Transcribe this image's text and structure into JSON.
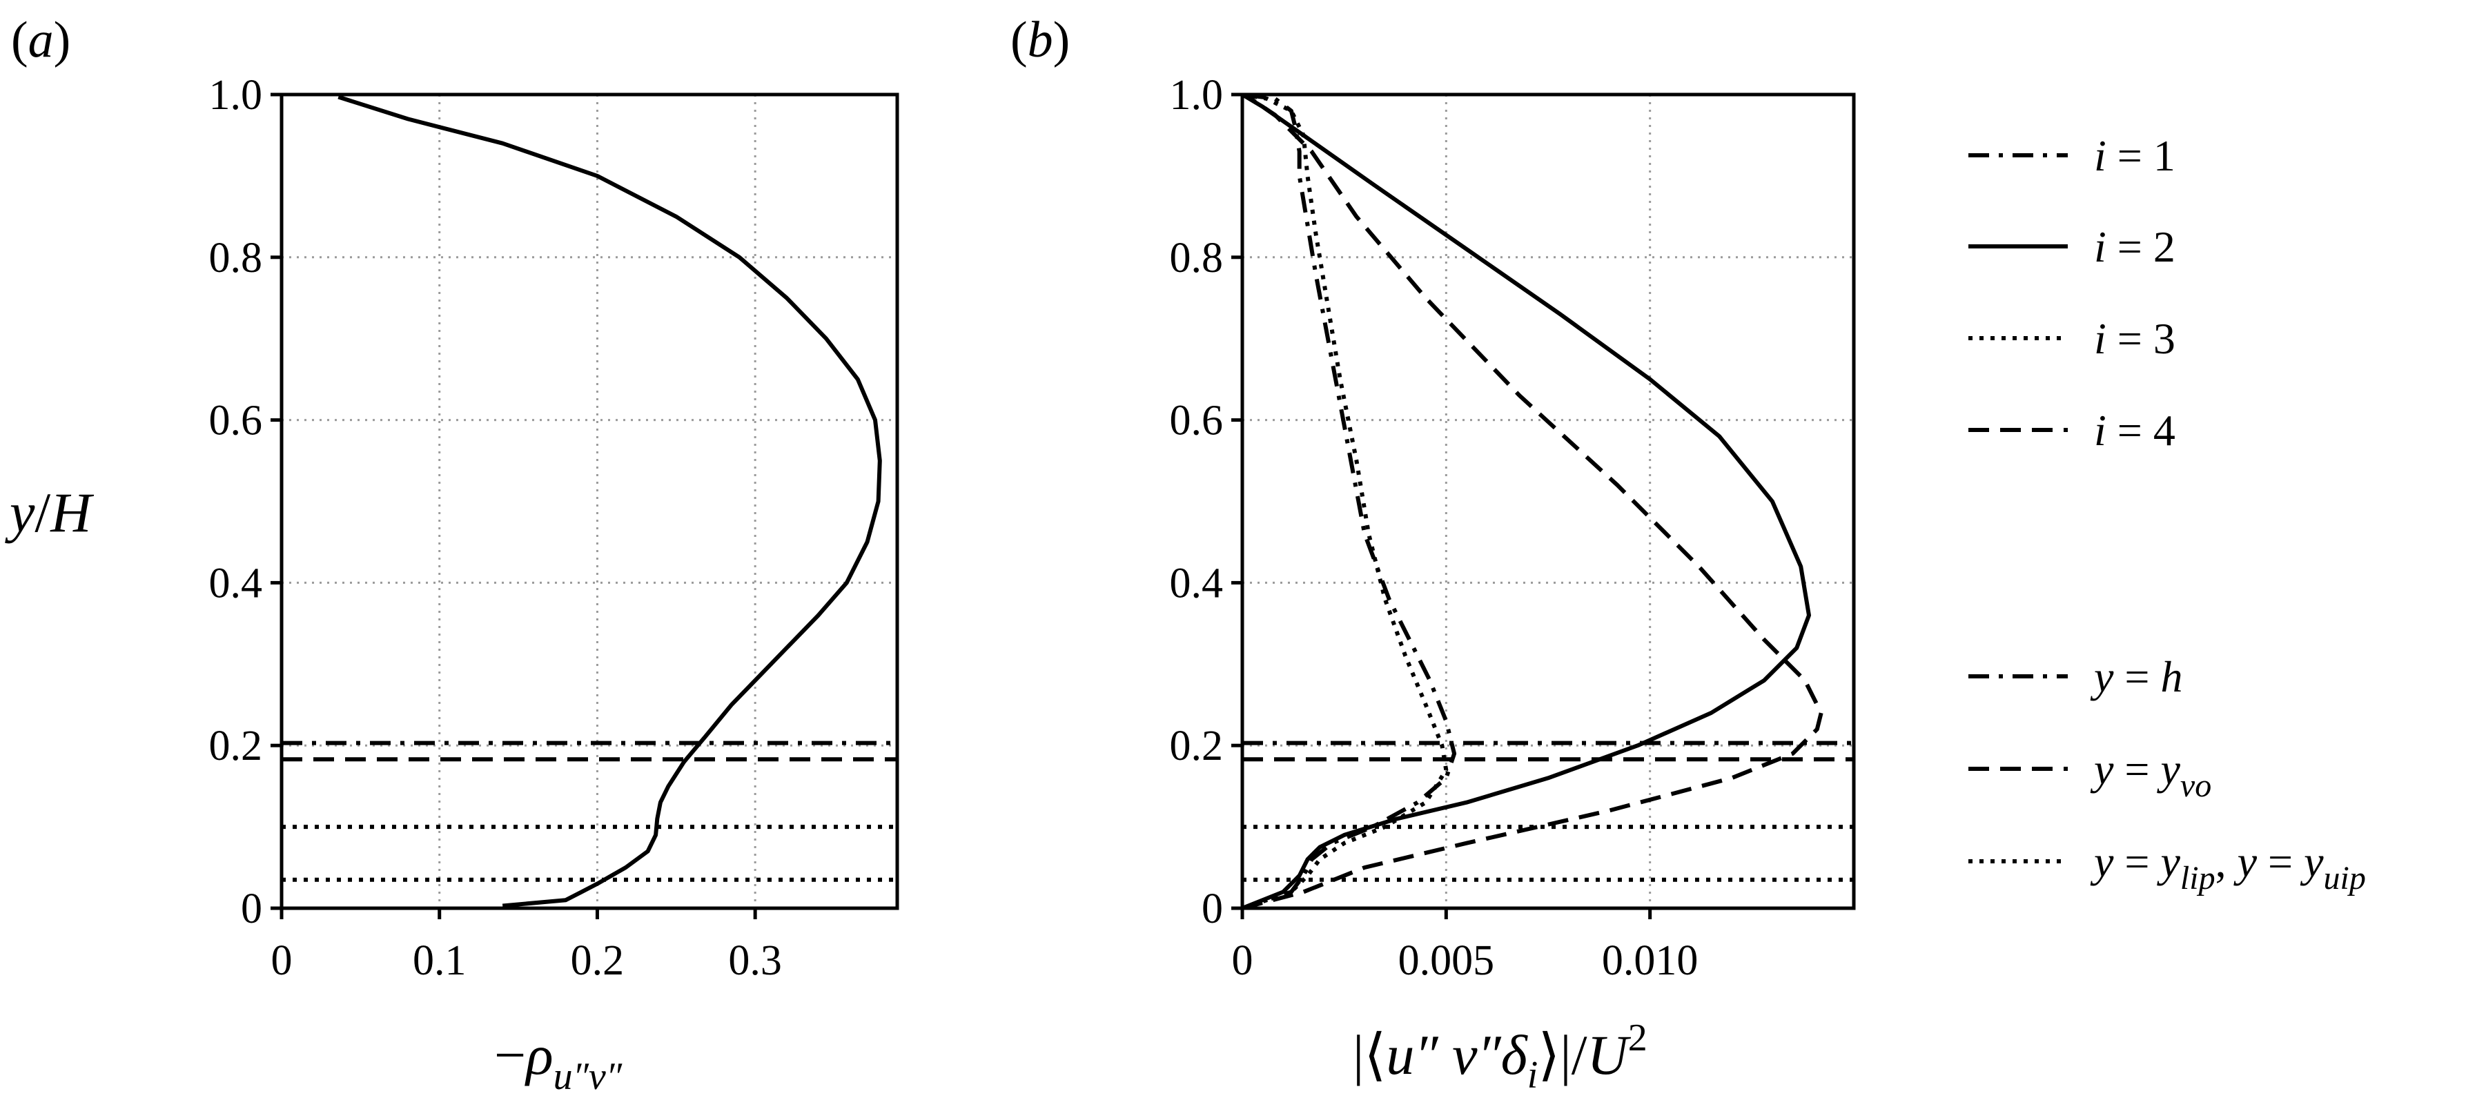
{
  "chart_data": [
    {
      "id": "a",
      "type": "line",
      "panel_label": "(a)",
      "xlabel": "−ρ_{u″v″}",
      "ylabel": "y/H",
      "xlim": [
        0,
        0.39
      ],
      "ylim": [
        0,
        1.0
      ],
      "xticks": [
        0,
        0.1,
        0.2,
        0.3
      ],
      "xtick_labels": [
        "0",
        "0.1",
        "0.2",
        "0.3"
      ],
      "yticks": [
        0,
        0.2,
        0.4,
        0.6,
        0.8,
        1.0
      ],
      "ytick_labels": [
        "0",
        "0.2",
        "0.4",
        "0.6",
        "0.8",
        "1.0"
      ],
      "grid": true,
      "series": [
        {
          "style": "solid",
          "x": [
            0.14,
            0.18,
            0.19,
            0.2,
            0.218,
            0.232,
            0.237,
            0.238,
            0.24,
            0.245,
            0.255,
            0.268,
            0.285,
            0.3,
            0.32,
            0.34,
            0.358,
            0.371,
            0.378,
            0.379,
            0.376,
            0.365,
            0.345,
            0.32,
            0.29,
            0.25,
            0.2,
            0.14,
            0.08,
            0.036
          ],
          "y": [
            0.003,
            0.01,
            0.02,
            0.03,
            0.05,
            0.07,
            0.09,
            0.11,
            0.13,
            0.15,
            0.18,
            0.21,
            0.25,
            0.28,
            0.32,
            0.36,
            0.4,
            0.45,
            0.5,
            0.55,
            0.6,
            0.65,
            0.7,
            0.75,
            0.8,
            0.85,
            0.9,
            0.94,
            0.97,
            0.997
          ]
        }
      ],
      "reference_lines": [
        {
          "y": 0.203,
          "style": "dashdot"
        },
        {
          "y": 0.183,
          "style": "dashed"
        },
        {
          "y": 0.1,
          "style": "dotted"
        },
        {
          "y": 0.035,
          "style": "dotted"
        }
      ]
    },
    {
      "id": "b",
      "type": "line",
      "panel_label": "(b)",
      "xlabel": "|⟨u″ v″δ_i⟩|/U^2",
      "xlim": [
        0,
        0.015
      ],
      "ylim": [
        0,
        1.0
      ],
      "xticks": [
        0,
        0.005,
        0.01
      ],
      "xtick_labels": [
        "0",
        "0.005",
        "0.010"
      ],
      "yticks": [
        0,
        0.2,
        0.4,
        0.6,
        0.8,
        1.0
      ],
      "ytick_labels": [
        "0",
        "0.2",
        "0.4",
        "0.6",
        "0.8",
        "1.0"
      ],
      "grid": true,
      "series": [
        {
          "name": "i = 1",
          "style": "dashdot",
          "x": [
            0,
            0.0012,
            0.0015,
            0.0017,
            0.0022,
            0.0032,
            0.0043,
            0.005,
            0.0052,
            0.005,
            0.0046,
            0.0042,
            0.0036,
            0.003,
            0.0027,
            0.0024,
            0.0021,
            0.0018,
            0.0016,
            0.0014,
            0.0014,
            0.0013,
            0.0012,
            0.0008,
            0
          ],
          "y": [
            0,
            0.02,
            0.04,
            0.06,
            0.08,
            0.1,
            0.13,
            0.16,
            0.19,
            0.23,
            0.28,
            0.32,
            0.38,
            0.46,
            0.54,
            0.62,
            0.7,
            0.78,
            0.84,
            0.9,
            0.93,
            0.96,
            0.98,
            0.995,
            1.0
          ]
        },
        {
          "name": "i = 2",
          "style": "solid",
          "x": [
            0,
            0.001,
            0.0014,
            0.0016,
            0.0019,
            0.0025,
            0.0038,
            0.0055,
            0.0075,
            0.0097,
            0.0115,
            0.0128,
            0.0136,
            0.0139,
            0.0137,
            0.013,
            0.0117,
            0.01,
            0.0078,
            0.0055,
            0.0032,
            0.0015,
            0.0005,
            0
          ],
          "y": [
            0,
            0.02,
            0.04,
            0.06,
            0.075,
            0.09,
            0.11,
            0.13,
            0.16,
            0.2,
            0.24,
            0.28,
            0.32,
            0.36,
            0.42,
            0.5,
            0.58,
            0.65,
            0.73,
            0.81,
            0.89,
            0.95,
            0.985,
            1.0
          ]
        },
        {
          "name": "i = 3",
          "style": "dotted",
          "x": [
            0,
            0.0012,
            0.0016,
            0.0019,
            0.0025,
            0.0035,
            0.0045,
            0.005,
            0.0049,
            0.0045,
            0.004,
            0.0035,
            0.0031,
            0.0028,
            0.0024,
            0.0021,
            0.0018,
            0.0016,
            0.0015,
            0.0012,
            0.0006,
            0
          ],
          "y": [
            0,
            0.02,
            0.04,
            0.06,
            0.08,
            0.1,
            0.13,
            0.17,
            0.2,
            0.25,
            0.31,
            0.38,
            0.46,
            0.55,
            0.65,
            0.74,
            0.83,
            0.9,
            0.95,
            0.98,
            0.995,
            1.0
          ]
        },
        {
          "name": "i = 4",
          "style": "dashed",
          "x": [
            0,
            0.0015,
            0.003,
            0.0055,
            0.009,
            0.012,
            0.0135,
            0.0141,
            0.0142,
            0.0138,
            0.0128,
            0.0112,
            0.0092,
            0.0068,
            0.0045,
            0.0028,
            0.0017,
            0.0008,
            0.0002,
            0
          ],
          "y": [
            0,
            0.02,
            0.05,
            0.08,
            0.12,
            0.16,
            0.19,
            0.22,
            0.24,
            0.28,
            0.33,
            0.42,
            0.52,
            0.63,
            0.75,
            0.85,
            0.93,
            0.975,
            0.995,
            1.0
          ]
        }
      ],
      "reference_lines": [
        {
          "y": 0.203,
          "style": "dashdot"
        },
        {
          "y": 0.183,
          "style": "dashed"
        },
        {
          "y": 0.1,
          "style": "dotted"
        },
        {
          "y": 0.035,
          "style": "dotted"
        }
      ]
    }
  ],
  "legend": {
    "placement": "right",
    "series_entries": [
      {
        "style": "dashdot",
        "label": "i = 1"
      },
      {
        "style": "solid",
        "label": "i = 2"
      },
      {
        "style": "dotted",
        "label": "i = 3"
      },
      {
        "style": "dashed",
        "label": "i = 4"
      }
    ],
    "line_entries": [
      {
        "style": "dashdot",
        "label": "y = h"
      },
      {
        "style": "dashed",
        "label": "y = y_vo"
      },
      {
        "style": "dotted",
        "label": "y = y_lip, y = y_uip"
      }
    ]
  }
}
